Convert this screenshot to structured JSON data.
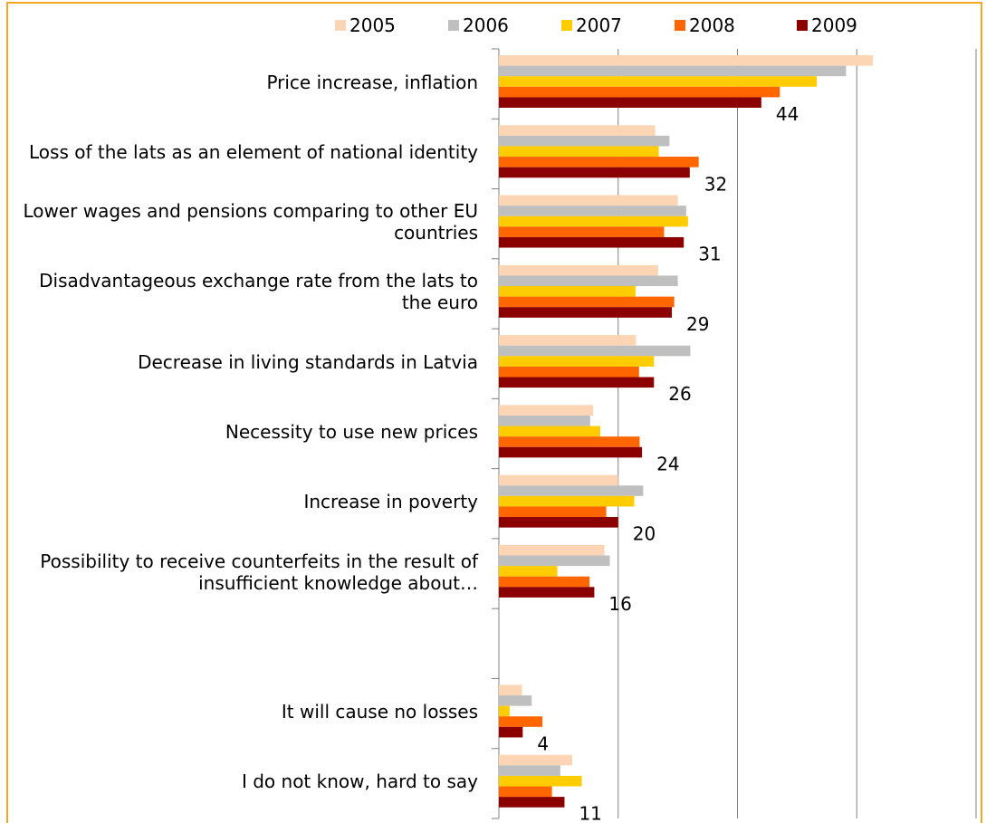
{
  "chart_data": {
    "type": "hbar",
    "categories": [
      "Price increase, inflation",
      "Loss of the lats as an element of national identity",
      "Lower wages and pensions comparing to other EU countries",
      "Disadvantageous exchange rate from the lats to the euro",
      "Decrease in living standards in Latvia",
      "Necessity to use new prices",
      "Increase in poverty",
      "Possibility to receive counterfeits in the result of insufficient knowledge about…",
      null,
      "It will cause no losses",
      "I do not know, hard to say"
    ],
    "series": [
      {
        "name": "2005",
        "color": "#fcd5b5",
        "values": [
          62.7,
          26.2,
          30,
          26.7,
          23,
          15.8,
          20,
          17.7,
          null,
          3.9,
          12.3
        ]
      },
      {
        "name": "2006",
        "color": "#bfbfbf",
        "values": [
          58.2,
          28.6,
          31.4,
          30,
          32.1,
          15.3,
          24.2,
          18.6,
          null,
          5.5,
          10.3
        ]
      },
      {
        "name": "2007",
        "color": "#ffcc00",
        "values": [
          53.3,
          26.8,
          31.7,
          22.9,
          26,
          17,
          22.7,
          9.8,
          null,
          1.8,
          13.9
        ]
      },
      {
        "name": "2008",
        "color": "#ff6600",
        "values": [
          47.1,
          33.5,
          27.7,
          29.4,
          23.5,
          23.6,
          18,
          15.2,
          null,
          7.3,
          8.9
        ]
      },
      {
        "name": "2009",
        "color": "#8b0000",
        "values": [
          44,
          32,
          31,
          29,
          26,
          24,
          20,
          16,
          null,
          4,
          11
        ],
        "data_labels": true
      }
    ],
    "xlim": [
      0,
      80
    ],
    "xticks": [
      0,
      20,
      40,
      60,
      80
    ],
    "grid": true,
    "legend": "top"
  }
}
